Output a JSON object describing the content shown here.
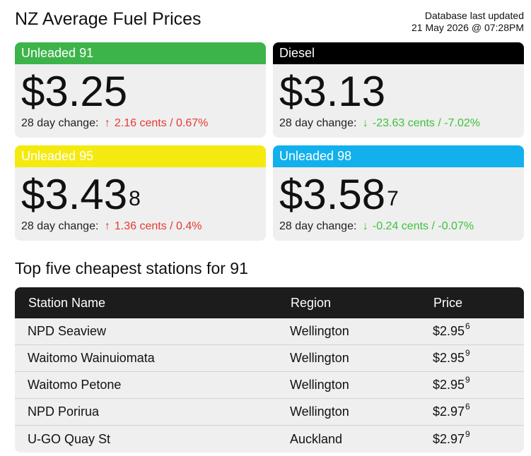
{
  "header": {
    "title": "NZ Average Fuel Prices",
    "updated_label": "Database last updated",
    "updated_value": "21 May 2026 @ 07:28PM"
  },
  "colors": {
    "unleaded91": "#3db44a",
    "diesel": "#000000",
    "unleaded95": "#f5ea10",
    "unleaded98": "#12b0ec",
    "up": "#e53935",
    "down": "#3cc23c"
  },
  "cards": [
    {
      "name": "Unleaded 91",
      "price": "$3.25",
      "price_sup": "",
      "change_label": "28 day change:",
      "direction": "up",
      "arrow": "↑",
      "change": "2.16 cents / 0.67%"
    },
    {
      "name": "Diesel",
      "price": "$3.13",
      "price_sup": "",
      "change_label": "28 day change:",
      "direction": "down",
      "arrow": "↓",
      "change": "-23.63 cents / -7.02%"
    },
    {
      "name": "Unleaded 95",
      "price": "$3.43",
      "price_sup": "8",
      "change_label": "28 day change:",
      "direction": "up",
      "arrow": "↑",
      "change": "1.36 cents / 0.4%"
    },
    {
      "name": "Unleaded 98",
      "price": "$3.58",
      "price_sup": "7",
      "change_label": "28 day change:",
      "direction": "down",
      "arrow": "↓",
      "change": "-0.24 cents / -0.07%"
    }
  ],
  "stations": {
    "title": "Top five cheapest stations for 91",
    "columns": [
      "Station Name",
      "Region",
      "Price"
    ],
    "rows": [
      {
        "name": "NPD Seaview",
        "region": "Wellington",
        "price": "$2.95",
        "price_sup": "6"
      },
      {
        "name": "Waitomo Wainuiomata",
        "region": "Wellington",
        "price": "$2.95",
        "price_sup": "9"
      },
      {
        "name": "Waitomo Petone",
        "region": "Wellington",
        "price": "$2.95",
        "price_sup": "9"
      },
      {
        "name": "NPD Porirua",
        "region": "Wellington",
        "price": "$2.97",
        "price_sup": "6"
      },
      {
        "name": "U-GO Quay St",
        "region": "Auckland",
        "price": "$2.97",
        "price_sup": "9"
      }
    ]
  }
}
